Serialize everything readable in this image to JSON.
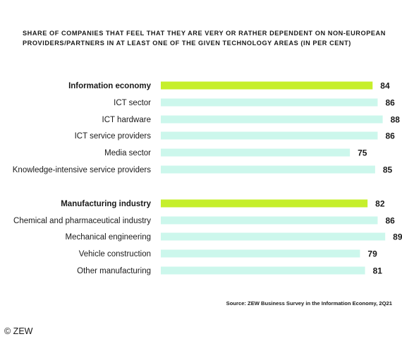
{
  "chart_data": {
    "type": "bar",
    "orientation": "horizontal",
    "title_lines": [
      "SHARE OF COMPANIES THAT FEEL THAT THEY ARE VERY OR RATHER DEPENDENT ON NON-EUROPEAN",
      "PROVIDERS/PARTNERS IN AT LEAST ONE OF THE GIVEN TECHNOLOGY AREAS (IN PER CENT)"
    ],
    "xlim": [
      0,
      100
    ],
    "grid": false,
    "colors": {
      "highlight": "#c6ef2b",
      "normal": "#ccf7ec"
    },
    "categories": [
      "Information economy",
      "ICT sector",
      "ICT hardware",
      "ICT service providers",
      "Media sector",
      "Knowledge-intensive service providers",
      "Manufacturing industry",
      "Chemical and pharmaceutical industry",
      "Mechanical engineering",
      "Vehicle construction",
      "Other manufacturing"
    ],
    "values": [
      84,
      86,
      88,
      86,
      75,
      85,
      82,
      86,
      89,
      79,
      81
    ],
    "highlighted": [
      true,
      false,
      false,
      false,
      false,
      false,
      true,
      false,
      false,
      false,
      false
    ],
    "source": "Source: ZEW Business Survey in the Information Economy, 2Q21"
  },
  "copyright": "© ZEW"
}
